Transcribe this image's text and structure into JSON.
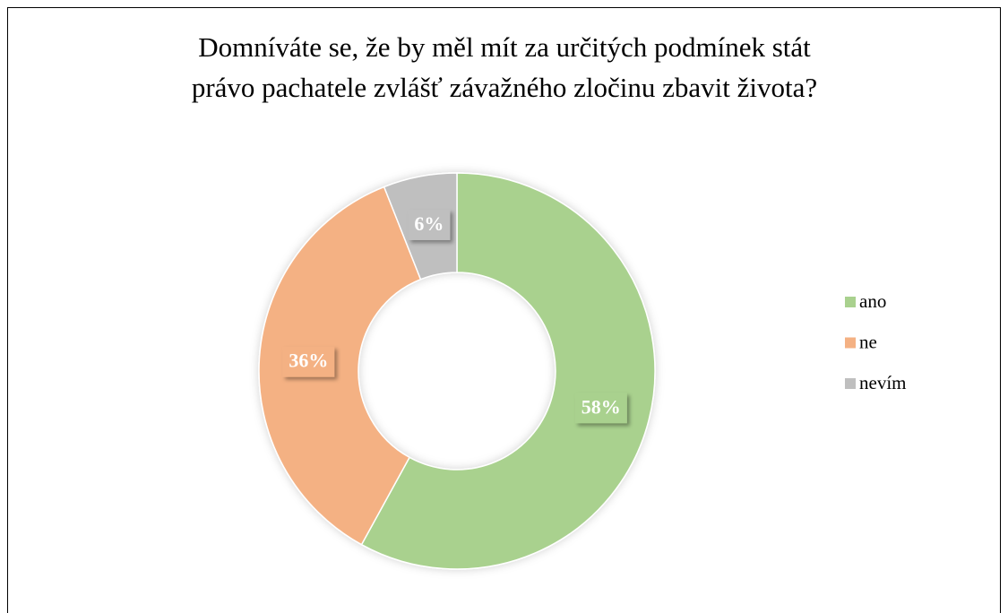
{
  "chart_data": {
    "type": "donut",
    "title": [
      "Domníváte se, že by měl mít za určitých podmínek stát",
      "právo pachatele zvlášť závažného zločinu zbavit života?"
    ],
    "categories": [
      "ano",
      "ne",
      "nevím"
    ],
    "values": [
      58,
      36,
      6
    ],
    "value_labels": [
      "58%",
      "36%",
      "6%"
    ],
    "colors": [
      "#a9d18e",
      "#f4b183",
      "#bfbfbf"
    ],
    "legend": "right"
  }
}
